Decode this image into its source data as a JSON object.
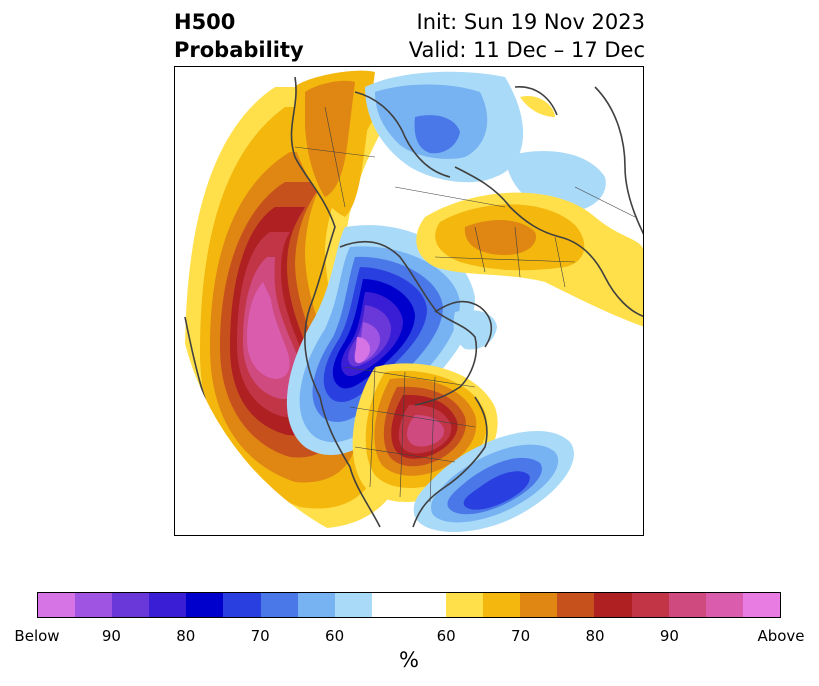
{
  "title": {
    "line1": "H500",
    "line2": "Probability",
    "init": "Init: Sun 19 Nov 2023",
    "valid": "Valid: 11 Dec – 17 Dec"
  },
  "colorbar": {
    "below_colors": [
      "#d674e6",
      "#9f55e1",
      "#6a37d9",
      "#3a1ed5",
      "#0000cd",
      "#2a3fdf",
      "#4a78e8",
      "#77b2f2",
      "#a9daf8"
    ],
    "neutral_color": "#ffffff",
    "above_colors": [
      "#ffe04a",
      "#f3b70d",
      "#df8613",
      "#c6511d",
      "#ae2021",
      "#c13546",
      "#ce4a7f",
      "#d95cad",
      "#e87ce2"
    ],
    "tick_labels": [
      "Below",
      "90",
      "80",
      "70",
      "60",
      "60",
      "70",
      "80",
      "90",
      "Above"
    ],
    "unit_label": "%"
  }
}
